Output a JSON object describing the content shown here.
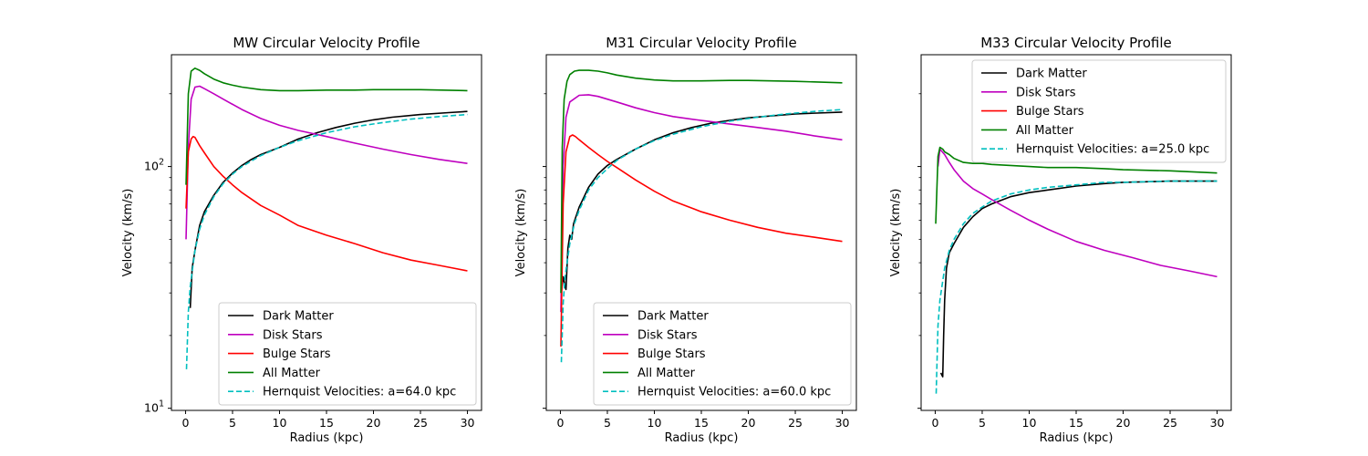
{
  "chart_data": [
    {
      "type": "line",
      "title": "MW Circular Velocity Profile",
      "xlabel": "Radius (kpc)",
      "ylabel": "Velocity (km/s)",
      "xlim": [
        -1.5,
        31.5
      ],
      "ylim": [
        9.8,
        290
      ],
      "yscale": "log",
      "xticks": [
        0,
        5,
        10,
        15,
        20,
        25,
        30
      ],
      "show_ytick_labels": true,
      "grid": false,
      "legend": "lower-right",
      "series": [
        {
          "name": "Dark Matter",
          "color": "#000000",
          "dash": "solid",
          "x": [
            0.5,
            0.7,
            1,
            1.5,
            2,
            3,
            4,
            5,
            6,
            7,
            8,
            10,
            12,
            14,
            16,
            18,
            20,
            22,
            25,
            28,
            30
          ],
          "y": [
            26,
            38,
            45,
            57,
            65,
            76,
            86,
            94,
            101,
            107,
            112,
            120,
            130,
            138,
            145,
            151,
            156,
            160,
            164,
            167,
            169
          ]
        },
        {
          "name": "Disk Stars",
          "color": "#bf00bf",
          "dash": "solid",
          "x": [
            0.05,
            0.3,
            0.6,
            1,
            1.5,
            2,
            3,
            4,
            6,
            8,
            10,
            12,
            15,
            18,
            21,
            24,
            27,
            30
          ],
          "y": [
            50,
            120,
            190,
            213,
            215,
            210,
            200,
            190,
            172,
            158,
            148,
            141,
            133,
            125,
            118,
            112,
            107,
            103
          ]
        },
        {
          "name": "Bulge Stars",
          "color": "#ff0000",
          "dash": "solid",
          "x": [
            0.05,
            0.3,
            0.6,
            0.8,
            1,
            1.2,
            1.5,
            2,
            3,
            4,
            5,
            6,
            8,
            10,
            12,
            15,
            18,
            21,
            24,
            27,
            30
          ],
          "y": [
            67,
            115,
            130,
            133,
            132,
            128,
            122,
            114,
            100,
            91,
            84,
            78,
            69,
            63,
            57,
            52,
            48,
            44,
            41,
            39,
            37
          ]
        },
        {
          "name": "All Matter",
          "color": "#008000",
          "dash": "solid",
          "x": [
            0.05,
            0.3,
            0.6,
            1,
            1.5,
            2,
            3,
            4,
            5,
            6,
            8,
            10,
            12,
            15,
            18,
            20,
            25,
            30
          ],
          "y": [
            84,
            200,
            248,
            255,
            250,
            242,
            230,
            222,
            217,
            213,
            208,
            206,
            206,
            207,
            207,
            208,
            208,
            206
          ]
        },
        {
          "name": "Hernquist Velocities: a=64.0 kpc",
          "color": "#00bfbf",
          "dash": "dashed",
          "x": [
            0.1,
            0.3,
            0.5,
            1,
            1.5,
            2,
            3,
            4,
            5,
            6,
            8,
            10,
            12,
            15,
            18,
            21,
            24,
            27,
            30
          ],
          "y": [
            14.5,
            25,
            32,
            45,
            55,
            63,
            75,
            85,
            93,
            100,
            111,
            120,
            128,
            138,
            146,
            152,
            157,
            161,
            164
          ]
        }
      ]
    },
    {
      "type": "line",
      "title": "M31 Circular Velocity Profile",
      "xlabel": "Radius (kpc)",
      "ylabel": "Velocity (km/s)",
      "xlim": [
        -1.5,
        31.5
      ],
      "ylim": [
        9.8,
        290
      ],
      "yscale": "log",
      "xticks": [
        0,
        5,
        10,
        15,
        20,
        25,
        30
      ],
      "show_ytick_labels": false,
      "grid": false,
      "legend": "lower-right",
      "series": [
        {
          "name": "Dark Matter",
          "color": "#000000",
          "dash": "solid",
          "x": [
            0.1,
            0.3,
            0.6,
            0.8,
            1,
            1.2,
            1.4,
            2,
            3,
            4,
            5,
            6,
            8,
            10,
            12,
            14,
            16,
            18,
            20,
            25,
            30
          ],
          "y": [
            30,
            35,
            31,
            46,
            52,
            50,
            58,
            68,
            82,
            93,
            101,
            107,
            118,
            129,
            138,
            145,
            151,
            155,
            159,
            165,
            168
          ]
        },
        {
          "name": "Disk Stars",
          "color": "#bf00bf",
          "dash": "solid",
          "x": [
            0.05,
            0.3,
            0.6,
            1,
            2,
            3,
            4,
            6,
            8,
            10,
            12,
            15,
            18,
            21,
            24,
            27,
            30
          ],
          "y": [
            25,
            100,
            160,
            185,
            197,
            198,
            195,
            185,
            175,
            167,
            161,
            155,
            150,
            145,
            140,
            134,
            129
          ]
        },
        {
          "name": "Bulge Stars",
          "color": "#ff0000",
          "dash": "solid",
          "x": [
            0.05,
            0.3,
            0.6,
            1,
            1.3,
            1.6,
            2,
            3,
            4,
            5,
            6,
            8,
            10,
            12,
            15,
            18,
            21,
            24,
            27,
            30
          ],
          "y": [
            18,
            70,
            115,
            133,
            135,
            133,
            129,
            120,
            112,
            105,
            99,
            88,
            79,
            72,
            65,
            60,
            56,
            53,
            51,
            49
          ]
        },
        {
          "name": "All Matter",
          "color": "#008000",
          "dash": "solid",
          "x": [
            0.05,
            0.2,
            0.4,
            0.7,
            1,
            1.5,
            2,
            3,
            4,
            5,
            6,
            8,
            10,
            12,
            15,
            18,
            20,
            25,
            30
          ],
          "y": [
            30,
            120,
            190,
            225,
            240,
            248,
            250,
            250,
            248,
            244,
            239,
            232,
            228,
            226,
            226,
            227,
            227,
            225,
            222
          ]
        },
        {
          "name": "Hernquist Velocities: a=60.0 kpc",
          "color": "#00bfbf",
          "dash": "dashed",
          "x": [
            0.1,
            0.3,
            0.5,
            1,
            1.5,
            2,
            3,
            4,
            5,
            6,
            8,
            10,
            12,
            15,
            18,
            21,
            24,
            27,
            30
          ],
          "y": [
            15.5,
            27,
            35,
            48,
            58,
            66,
            80,
            90,
            98,
            106,
            118,
            128,
            136,
            146,
            154,
            160,
            165,
            169,
            172
          ]
        }
      ]
    },
    {
      "type": "line",
      "title": "M33 Circular Velocity Profile",
      "xlabel": "Radius (kpc)",
      "ylabel": "Velocity (km/s)",
      "xlim": [
        -1.5,
        31.5
      ],
      "ylim": [
        9.8,
        290
      ],
      "yscale": "log",
      "xticks": [
        0,
        5,
        10,
        15,
        20,
        25,
        30
      ],
      "show_ytick_labels": false,
      "grid": false,
      "legend": "upper-right",
      "series": [
        {
          "name": "Dark Matter",
          "color": "#000000",
          "dash": "solid",
          "x": [
            0.6,
            0.8,
            0.9,
            1,
            1.2,
            1.5,
            2,
            3,
            4,
            5,
            6,
            8,
            10,
            12,
            15,
            18,
            20,
            25,
            30
          ],
          "y": [
            14,
            13.5,
            20,
            28,
            38,
            44,
            48,
            56,
            62,
            67,
            70,
            75,
            78,
            80,
            83,
            85,
            86,
            87,
            87
          ]
        },
        {
          "name": "Disk Stars",
          "color": "#bf00bf",
          "dash": "solid",
          "x": [
            0.3,
            0.5,
            1,
            1.5,
            2,
            3,
            4,
            5,
            6,
            8,
            10,
            12,
            15,
            18,
            21,
            24,
            27,
            30
          ],
          "y": [
            100,
            118,
            112,
            104,
            97,
            87,
            81,
            77,
            73,
            66,
            60,
            55,
            49,
            45,
            42,
            39,
            37,
            35
          ]
        },
        {
          "name": "Bulge Stars",
          "color": "#ff0000",
          "dash": "solid",
          "x": [],
          "y": []
        },
        {
          "name": "All Matter",
          "color": "#008000",
          "dash": "solid",
          "x": [
            0.05,
            0.3,
            0.5,
            0.8,
            1,
            1.5,
            2,
            3,
            4,
            5,
            6,
            8,
            10,
            12,
            15,
            18,
            20,
            25,
            30
          ],
          "y": [
            58,
            110,
            120,
            118,
            115,
            112,
            108,
            104,
            103,
            103,
            102,
            101,
            100,
            99,
            99,
            98,
            97,
            96,
            94
          ]
        },
        {
          "name": "Hernquist Velocities: a=25.0 kpc",
          "color": "#00bfbf",
          "dash": "dashed",
          "x": [
            0.1,
            0.3,
            0.5,
            1,
            1.5,
            2,
            3,
            4,
            5,
            6,
            8,
            10,
            12,
            15,
            18,
            20,
            25,
            30
          ],
          "y": [
            11.5,
            22,
            28,
            38,
            45,
            50,
            58,
            64,
            68,
            72,
            77,
            80,
            82,
            84,
            86,
            86,
            87,
            87
          ]
        }
      ]
    }
  ]
}
